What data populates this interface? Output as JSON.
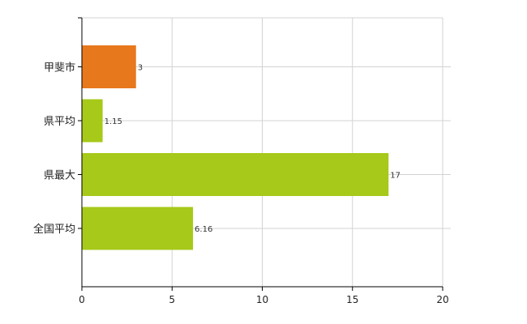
{
  "chart_data": {
    "type": "bar",
    "orientation": "horizontal",
    "categories": [
      "甲斐市",
      "県平均",
      "県最大",
      "全国平均"
    ],
    "values": [
      3,
      1.15,
      17,
      6.16
    ],
    "value_labels": [
      "3",
      "1.15",
      "17",
      "6.16"
    ],
    "colors": [
      "#e8781c",
      "#a6c91a",
      "#a6c91a",
      "#a6c91a"
    ],
    "xlim": [
      0,
      20
    ],
    "x_ticks": [
      0,
      5,
      10,
      15,
      20
    ],
    "x_tick_labels": [
      "0",
      "5",
      "10",
      "15",
      "20"
    ],
    "grid": true,
    "title": "",
    "xlabel": "",
    "ylabel": ""
  }
}
